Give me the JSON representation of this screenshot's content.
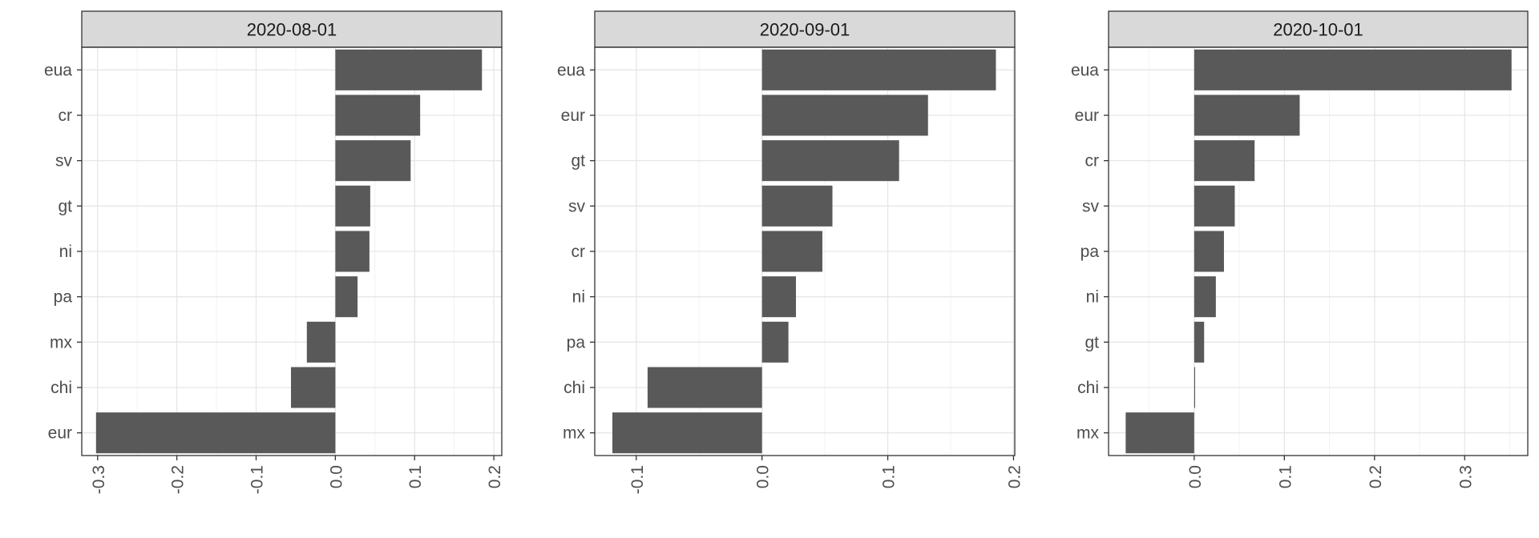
{
  "chart_data": [
    {
      "type": "bar",
      "orientation": "horizontal",
      "title": "2020-08-01",
      "categories": [
        "eua",
        "cr",
        "sv",
        "gt",
        "ni",
        "pa",
        "mx",
        "chi",
        "eur"
      ],
      "values": [
        0.185,
        0.107,
        0.095,
        0.044,
        0.043,
        0.028,
        -0.036,
        -0.056,
        -0.302
      ],
      "xlim": [
        -0.32,
        0.21
      ],
      "ticks": [
        -0.3,
        -0.2,
        -0.1,
        0.0,
        0.1,
        0.2
      ],
      "tick_labels": [
        "-0.3",
        "-0.2",
        "-0.1",
        "0.0",
        "0.1",
        "0.2"
      ],
      "xlabel": "",
      "ylabel": "",
      "grid": true
    },
    {
      "type": "bar",
      "orientation": "horizontal",
      "title": "2020-09-01",
      "categories": [
        "eua",
        "eur",
        "gt",
        "sv",
        "cr",
        "ni",
        "pa",
        "chi",
        "mx"
      ],
      "values": [
        0.186,
        0.132,
        0.109,
        0.056,
        0.048,
        0.027,
        0.021,
        -0.091,
        -0.119
      ],
      "xlim": [
        -0.133,
        0.201
      ],
      "ticks": [
        -0.1,
        0.0,
        0.1,
        0.2
      ],
      "tick_labels": [
        "-0.1",
        "0.0",
        "0.1",
        "0.2"
      ],
      "xlabel": "",
      "ylabel": "",
      "grid": true
    },
    {
      "type": "bar",
      "orientation": "horizontal",
      "title": "2020-10-01",
      "categories": [
        "eua",
        "eur",
        "cr",
        "sv",
        "pa",
        "ni",
        "gt",
        "chi",
        "mx"
      ],
      "values": [
        0.352,
        0.117,
        0.067,
        0.045,
        0.033,
        0.024,
        0.011,
        0.001,
        -0.076
      ],
      "xlim": [
        -0.095,
        0.37
      ],
      "ticks": [
        0.0,
        0.1,
        0.2,
        0.3
      ],
      "tick_labels": [
        "0.0",
        "0.1",
        "0.2",
        "0.3"
      ],
      "xlabel": "",
      "ylabel": "",
      "grid": true
    }
  ],
  "colors": {
    "bar": "#595959",
    "strip": "#d9d9d9",
    "grid": "#e6e6e6"
  }
}
